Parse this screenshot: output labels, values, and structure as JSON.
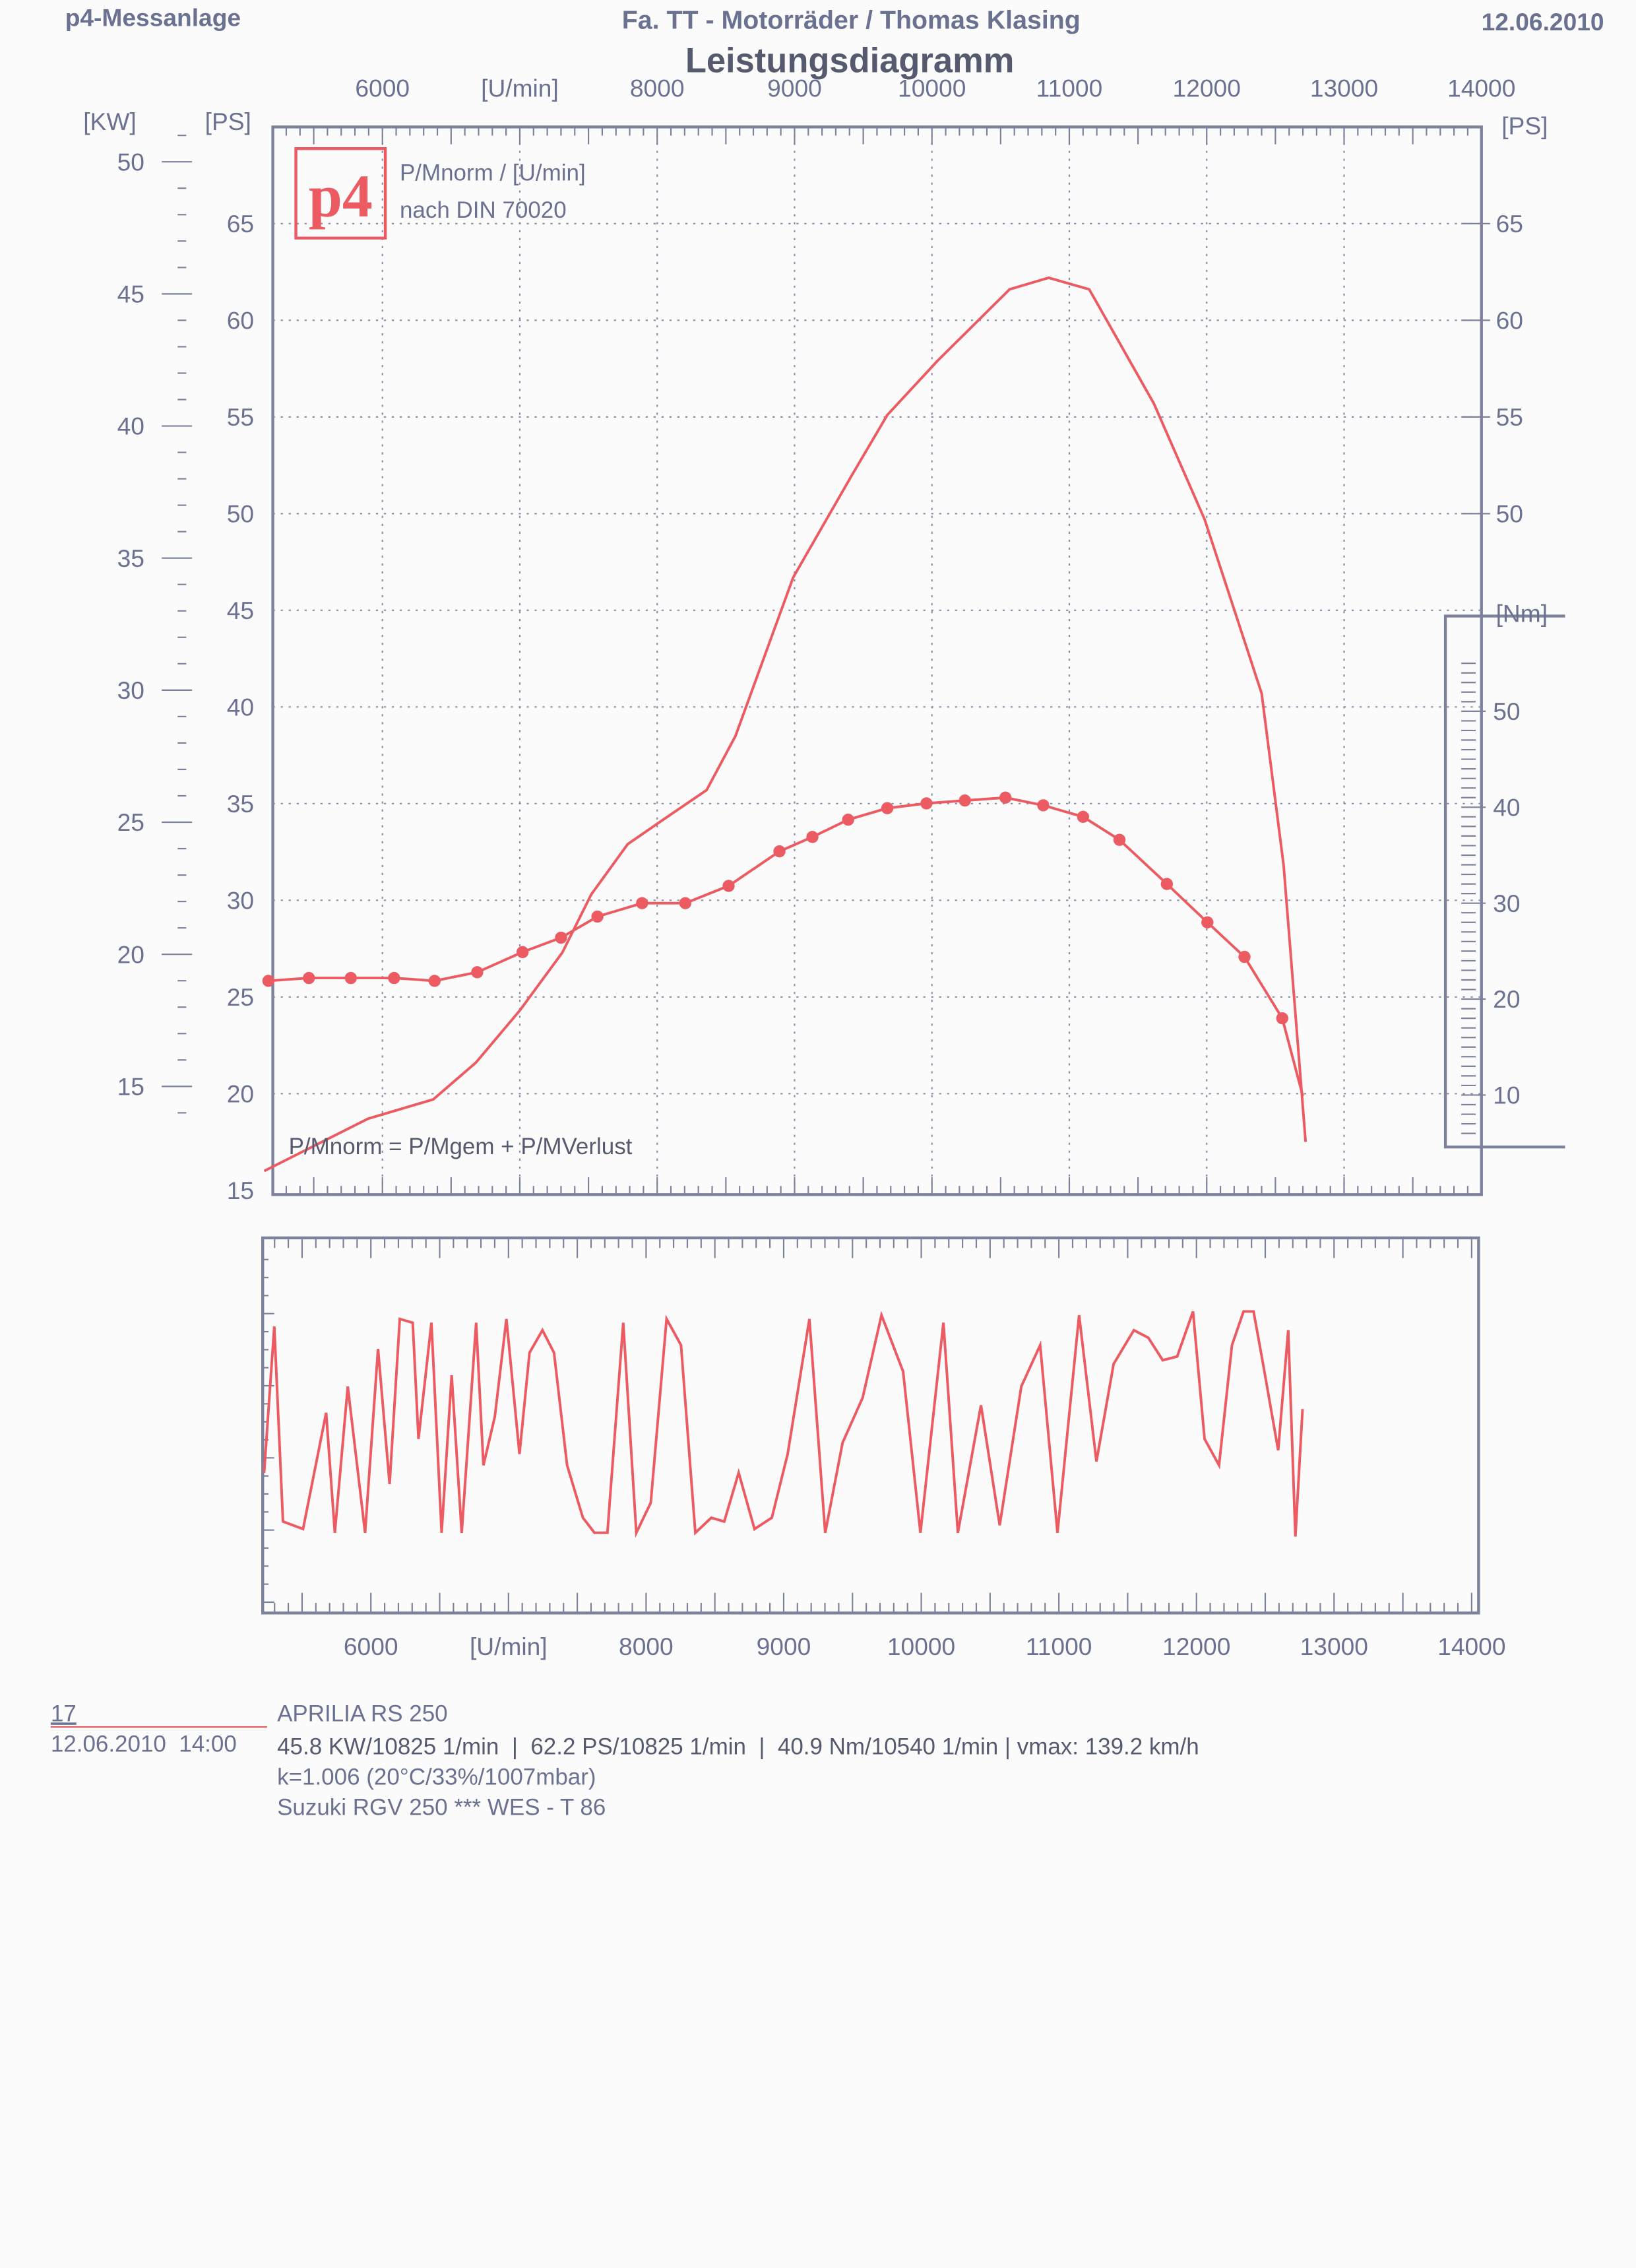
{
  "header": {
    "left": "p4-Messanlage",
    "center": "Fa. TT - Motorräder / Thomas Klasing",
    "date": "12.06.2010",
    "title": "Leistungsdiagramm"
  },
  "logo": {
    "text": "p4"
  },
  "legend": {
    "line1": "P/Mnorm / [U/min]",
    "line2": "nach DIN 70020",
    "formula": "P/Mnorm = P/Mgem + P/MVerlust"
  },
  "footer": {
    "run_no": "17",
    "vehicle": "APRILIA RS 250",
    "datetime": "12.06.2010  14:00",
    "summary": "45.8 KW/10825 1/min  |  62.2 PS/10825 1/min  |  40.9 Nm/10540 1/min | vmax: 139.2 km/h",
    "conditions": "k=1.006 (20°C/33%/1007mbar)",
    "note": "Suzuki RGV 250 *** WES - T 86"
  },
  "colors": {
    "curve": "#ec5a62",
    "text": "#6b7190"
  },
  "chart_data": [
    {
      "type": "line",
      "title": "Leistungsdiagramm",
      "xlabel": "[U/min]",
      "ylabel_left_kw": "[KW]",
      "ylabel_left_ps": "[PS]",
      "ylabel_right_ps": "[PS]",
      "ylabel_right_nm": "[Nm]",
      "x_ticks": [
        6000,
        8000,
        9000,
        10000,
        11000,
        12000,
        13000,
        14000
      ],
      "kw_ticks": [
        15,
        20,
        25,
        30,
        35,
        40,
        45,
        50
      ],
      "ps_ticks": [
        15,
        20,
        25,
        30,
        35,
        40,
        45,
        50,
        55,
        60,
        65
      ],
      "ps_right_ticks": [
        20,
        25,
        30,
        35,
        40,
        45,
        50,
        55,
        60,
        65
      ],
      "nm_ticks": [
        10,
        20,
        30,
        40,
        50
      ],
      "xlim": [
        5200,
        14000
      ],
      "ylim_ps": [
        15,
        68
      ],
      "grid": true,
      "series": [
        {
          "unit": "PS",
          "x": [
            5140,
            5895,
            6370,
            6680,
            7000,
            7310,
            7520,
            7785,
            8050,
            8360,
            8570,
            8990,
            9410,
            9675,
            10040,
            10565,
            10850,
            11145,
            11615,
            11985,
            12400,
            12560,
            12720
          ],
          "y": [
            16.0,
            18.7,
            19.7,
            21.6,
            24.3,
            27.3,
            30.3,
            32.9,
            34.2,
            35.7,
            38.5,
            46.7,
            51.9,
            55.1,
            57.9,
            61.6,
            62.2,
            61.6,
            55.7,
            49.7,
            40.7,
            31.8,
            17.5
          ]
        },
        {
          "unit": "Nm",
          "markers": true,
          "x": [
            5170,
            5465,
            5770,
            6085,
            6380,
            6690,
            7020,
            7300,
            7565,
            7890,
            8205,
            8520,
            8890,
            9130,
            9390,
            9675,
            9960,
            10240,
            10535,
            10810,
            11100,
            11365,
            11710,
            12005,
            12275,
            12550,
            12700
          ],
          "y": [
            21.9,
            22.2,
            22.2,
            22.2,
            21.9,
            22.8,
            24.9,
            26.4,
            28.6,
            30.0,
            30.0,
            31.8,
            35.4,
            36.9,
            38.7,
            39.9,
            40.4,
            40.7,
            41.0,
            40.2,
            39.0,
            36.6,
            32.0,
            28.0,
            24.4,
            18.0,
            9.9
          ]
        }
      ]
    },
    {
      "type": "line",
      "xlabel": "[U/min]",
      "x_ticks": [
        6000,
        8000,
        9000,
        10000,
        11000,
        12000,
        13000,
        14000
      ],
      "xlim": [
        5200,
        14000
      ],
      "ylim": [
        0,
        1
      ],
      "series": [
        {
          "x": [
            5224,
            5298,
            5361,
            5507,
            5675,
            5738,
            5832,
            5958,
            6052,
            6136,
            6210,
            6304,
            6346,
            6440,
            6514,
            6587,
            6660,
            6765,
            6818,
            6901,
            6985,
            7080,
            7153,
            7247,
            7331,
            7426,
            7541,
            7625,
            7719,
            7834,
            7929,
            8034,
            8149,
            8254,
            8358,
            8474,
            8568,
            8673,
            8788,
            8914,
            9029,
            9187,
            9302,
            9428,
            9574,
            9711,
            9868,
            9994,
            10161,
            10266,
            10434,
            10570,
            10727,
            10864,
            10990,
            11147,
            11273,
            11398,
            11545,
            11650,
            11755,
            11860,
            11975,
            12059,
            12164,
            12258,
            12342,
            12415,
            12489,
            12594,
            12667,
            12719,
            12771
          ],
          "y": [
            0.37,
            0.76,
            0.24,
            0.22,
            0.53,
            0.21,
            0.6,
            0.21,
            0.7,
            0.34,
            0.78,
            0.77,
            0.46,
            0.77,
            0.21,
            0.63,
            0.21,
            0.77,
            0.39,
            0.52,
            0.78,
            0.42,
            0.69,
            0.75,
            0.69,
            0.39,
            0.25,
            0.21,
            0.21,
            0.77,
            0.21,
            0.29,
            0.78,
            0.71,
            0.21,
            0.25,
            0.24,
            0.37,
            0.22,
            0.25,
            0.42,
            0.78,
            0.21,
            0.45,
            0.57,
            0.79,
            0.64,
            0.21,
            0.77,
            0.21,
            0.55,
            0.23,
            0.6,
            0.71,
            0.21,
            0.79,
            0.4,
            0.66,
            0.75,
            0.73,
            0.67,
            0.68,
            0.8,
            0.46,
            0.39,
            0.71,
            0.8,
            0.8,
            0.65,
            0.43,
            0.75,
            0.2,
            0.54
          ]
        }
      ]
    }
  ]
}
